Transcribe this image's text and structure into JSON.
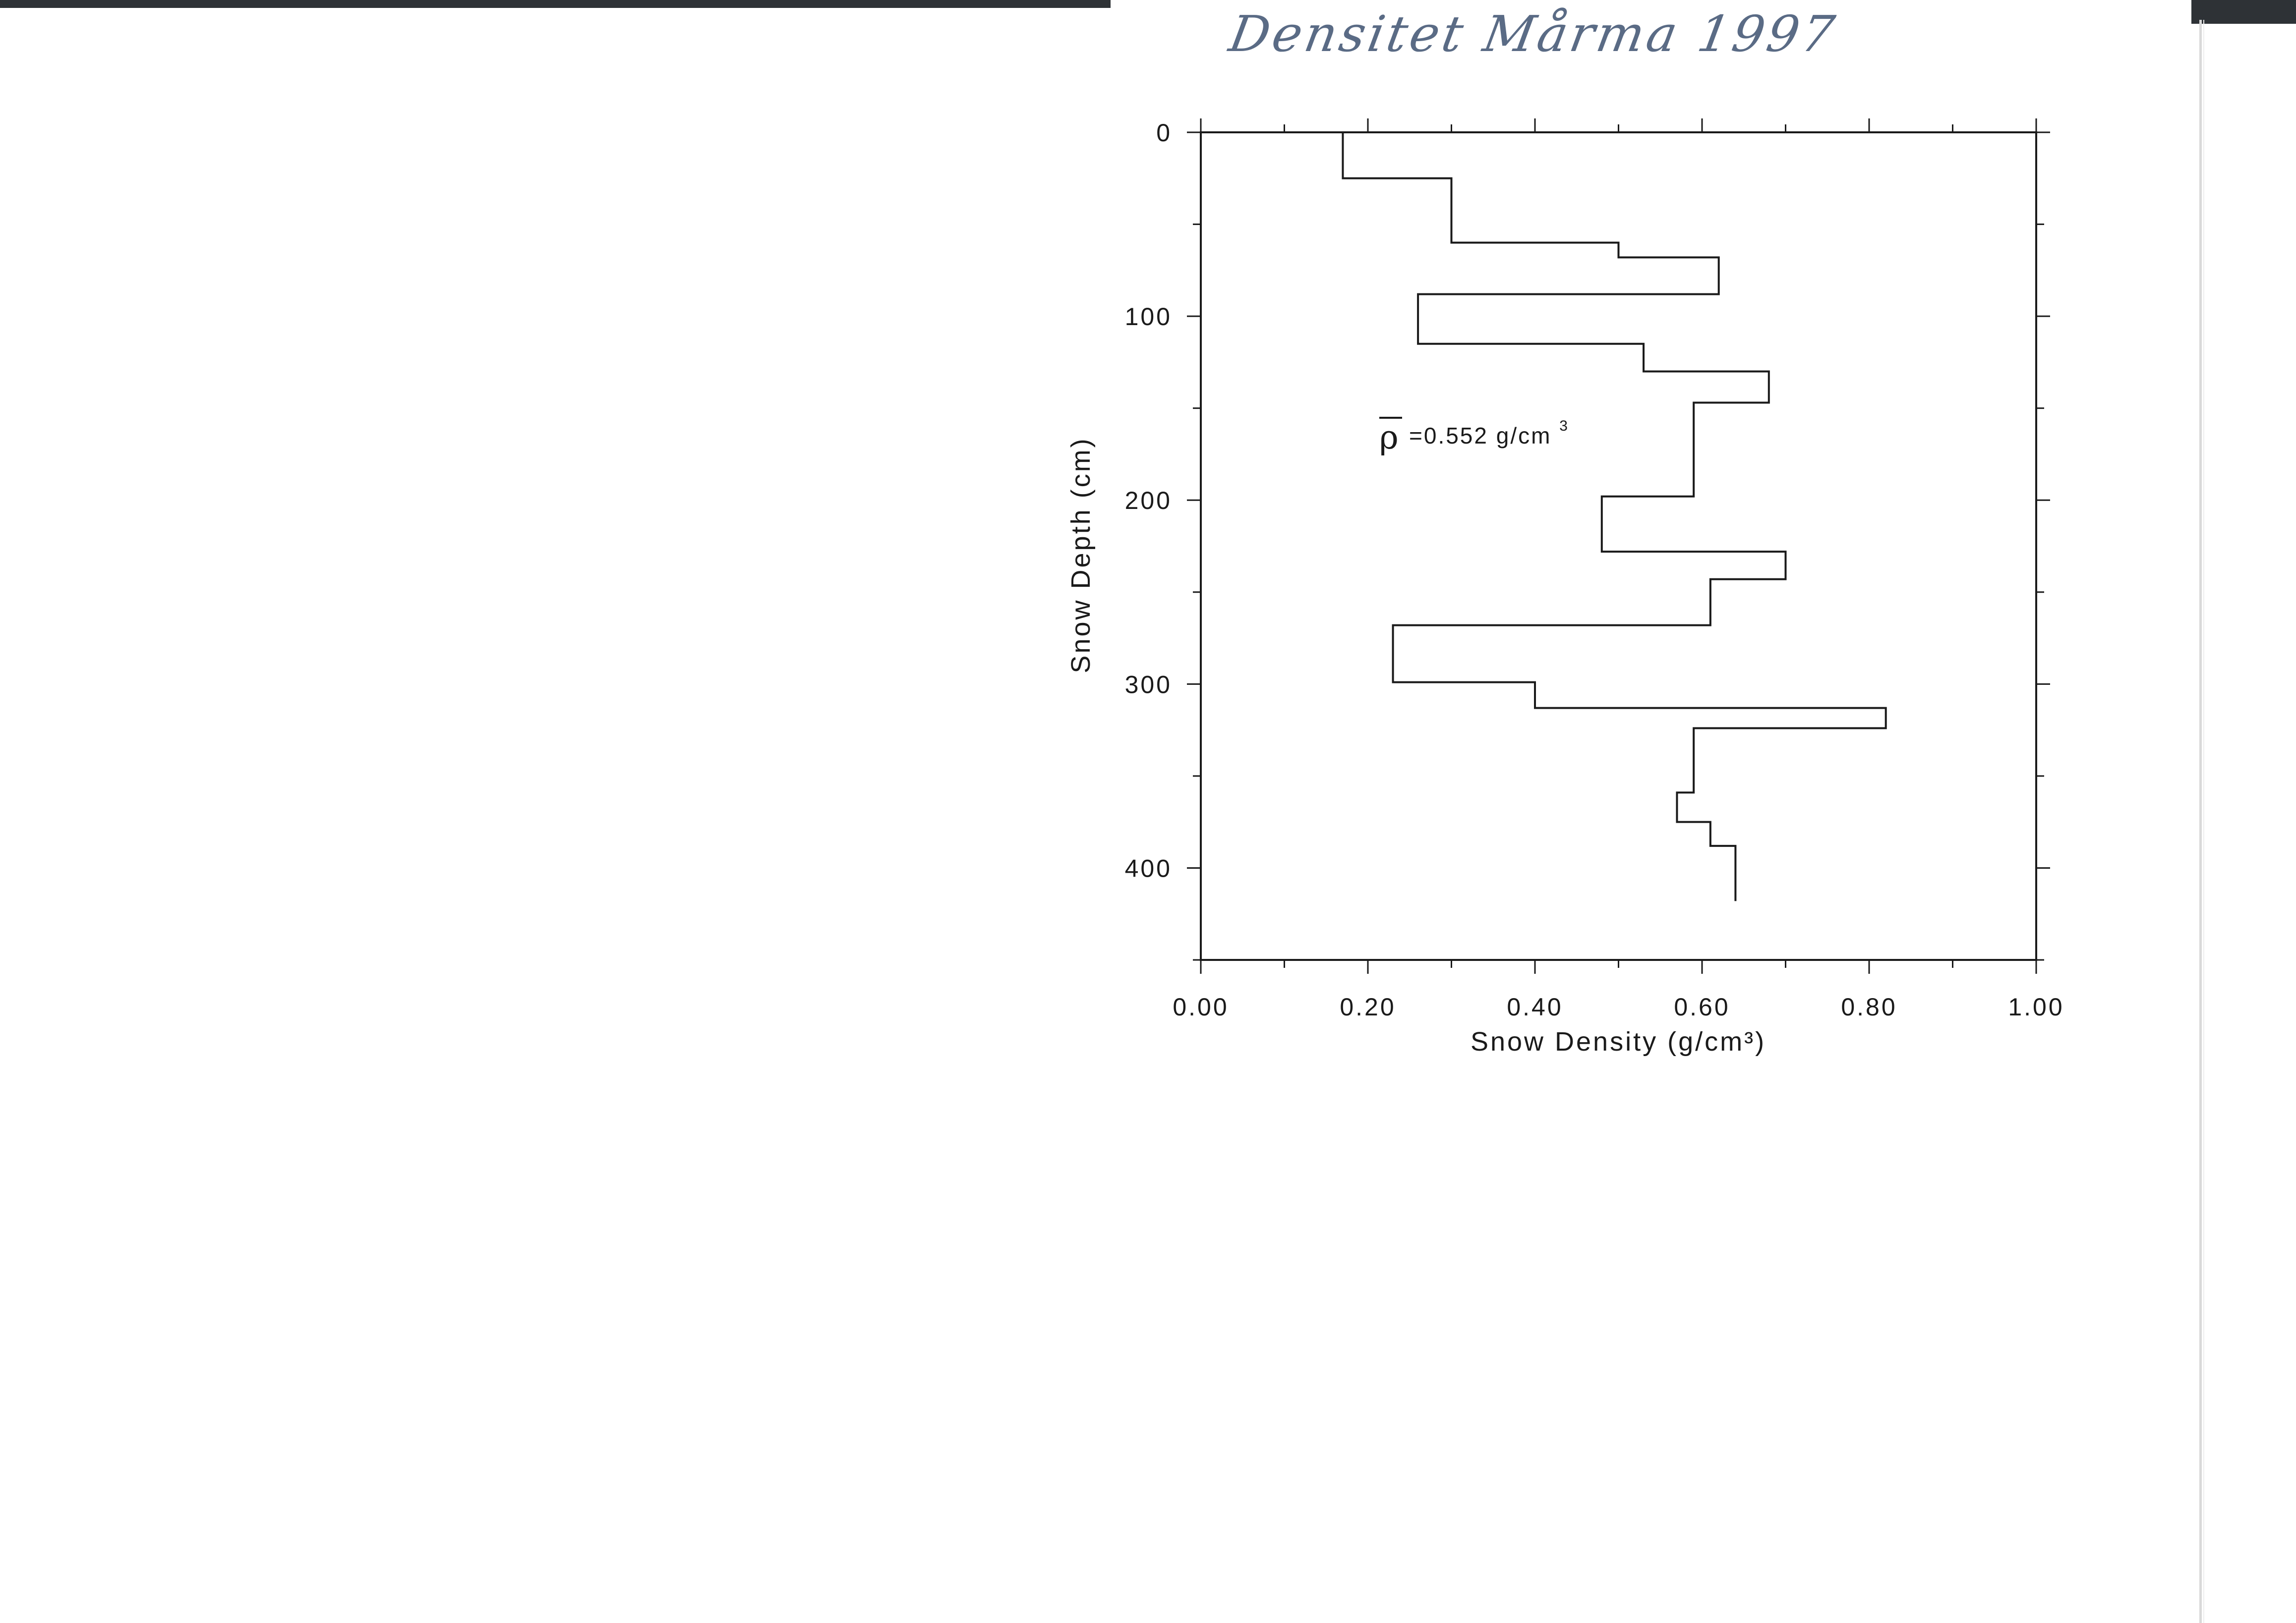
{
  "handwritten_title": "Densitet Mårma 1997",
  "chart_data": {
    "type": "line",
    "title": "",
    "xlabel": "Snow Density (g/cm³)",
    "ylabel": "Snow Depth (cm)",
    "xlim": [
      0.0,
      1.0
    ],
    "ylim": [
      0,
      450
    ],
    "y_inverted": true,
    "x_ticks": [
      "0.00",
      "0.20",
      "0.40",
      "0.60",
      "0.80",
      "1.00"
    ],
    "y_ticks": [
      "0",
      "100",
      "200",
      "300",
      "400"
    ],
    "annotation": {
      "symbol": "ρ",
      "text": "=0.552 g/cm",
      "superscript": "3"
    },
    "series": [
      {
        "steps": [
          {
            "top": 0,
            "bottom": 25,
            "density": 0.17
          },
          {
            "top": 25,
            "bottom": 60,
            "density": 0.3
          },
          {
            "top": 60,
            "bottom": 68,
            "density": 0.5
          },
          {
            "top": 68,
            "bottom": 88,
            "density": 0.62
          },
          {
            "top": 88,
            "bottom": 115,
            "density": 0.26
          },
          {
            "top": 115,
            "bottom": 130,
            "density": 0.53
          },
          {
            "top": 130,
            "bottom": 147,
            "density": 0.68
          },
          {
            "top": 147,
            "bottom": 170,
            "density": 0.59
          },
          {
            "top": 170,
            "bottom": 198,
            "density": 0.59
          },
          {
            "top": 198,
            "bottom": 228,
            "density": 0.48
          },
          {
            "top": 228,
            "bottom": 243,
            "density": 0.7
          },
          {
            "top": 243,
            "bottom": 268,
            "density": 0.61
          },
          {
            "top": 268,
            "bottom": 299,
            "density": 0.23
          },
          {
            "top": 299,
            "bottom": 313,
            "density": 0.4
          },
          {
            "top": 313,
            "bottom": 324,
            "density": 0.82
          },
          {
            "top": 324,
            "bottom": 359,
            "density": 0.59
          },
          {
            "top": 359,
            "bottom": 375,
            "density": 0.57
          },
          {
            "top": 375,
            "bottom": 388,
            "density": 0.61
          },
          {
            "top": 388,
            "bottom": 418,
            "density": 0.64
          }
        ]
      }
    ]
  }
}
